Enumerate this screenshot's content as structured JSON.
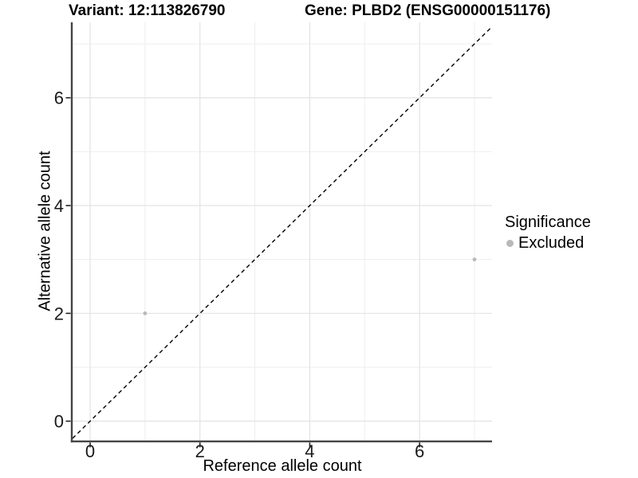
{
  "chart_data": {
    "type": "scatter",
    "title_variant": "Variant: 12:113826790",
    "title_gene": "Gene: PLBD2 (ENSG00000151176)",
    "xlabel": "Reference allele count",
    "ylabel": "Alternative allele count",
    "xlim": [
      -0.32,
      7.32
    ],
    "ylim": [
      -0.36,
      7.4
    ],
    "x_ticks": [
      0,
      2,
      4,
      6
    ],
    "y_ticks": [
      0,
      2,
      4,
      6
    ],
    "x_minor_ticks": [
      1,
      3,
      5,
      7
    ],
    "y_minor_ticks": [
      1,
      3,
      5,
      7
    ],
    "grid": "on",
    "identity_line": {
      "equation": "y = x",
      "style": "dashed",
      "color": "#000000",
      "from": -0.32,
      "to": 7.32
    },
    "series": [
      {
        "name": "Excluded",
        "color": "#b9b9b9",
        "points": [
          [
            1,
            2
          ],
          [
            7,
            3
          ]
        ]
      }
    ],
    "legend": {
      "title": "Significance",
      "position": "right",
      "entries": [
        {
          "label": "Excluded",
          "color": "#b9b9b9",
          "marker": "circle"
        }
      ]
    },
    "colors": {
      "background": "#ffffff",
      "axis_line": "#454545",
      "tick_mark": "#222222",
      "tick_text": "#1a1a1a",
      "grid_major": "#e3e3e3",
      "grid_minor": "#eeeeee"
    }
  }
}
